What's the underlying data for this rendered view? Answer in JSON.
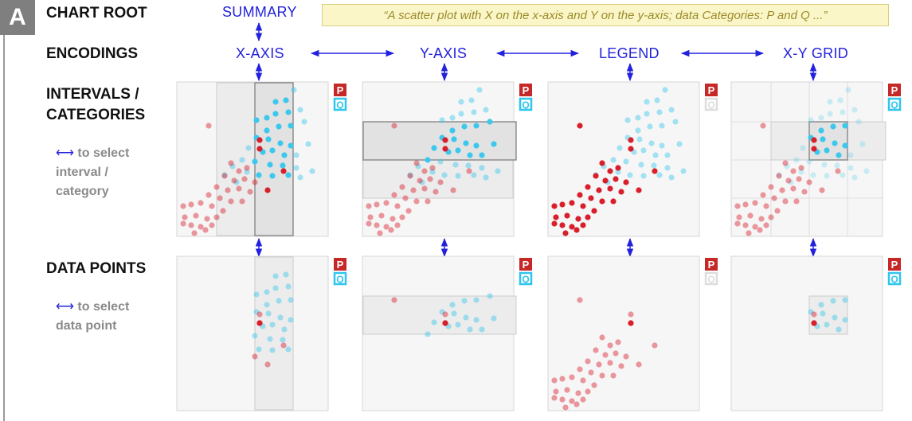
{
  "panel_letter": "A",
  "rows": {
    "chart_root": "CHART ROOT",
    "encodings": "ENCODINGS",
    "intervals_1": "INTERVALS /",
    "intervals_2": "CATEGORIES",
    "data_points": "DATA POINTS"
  },
  "hints": {
    "interval_1": "to select",
    "interval_2": "interval /",
    "interval_3": "category",
    "point_1": "to select",
    "point_2": "data point"
  },
  "nodes": {
    "summary": "SUMMARY",
    "x_axis": "X-AXIS",
    "y_axis": "Y-AXIS",
    "legend": "LEGEND",
    "xy_grid": "X-Y GRID"
  },
  "summary_text": "“A scatter plot with X on the x-axis and Y on the y-axis; data Categories: P and Q ...”",
  "legend_badges": {
    "p": "P",
    "q": "Q"
  },
  "colors": {
    "p": "#d8202c",
    "q": "#3cc8ec",
    "link": "#2222dd",
    "badge_p": "#c62828",
    "badge_q": "#2ec5ee"
  }
}
